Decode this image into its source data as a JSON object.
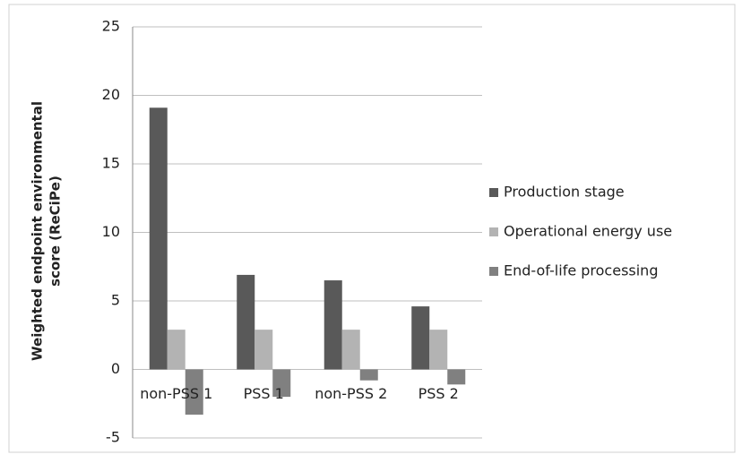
{
  "chart_data": {
    "type": "bar",
    "ylabel": [
      "Weighted endpoint environmental",
      "score (ReCiPe)"
    ],
    "categories": [
      "non-PSS 1",
      "PSS 1",
      "non-PSS 2",
      "PSS 2"
    ],
    "series": [
      {
        "name": "Production stage",
        "color": "#595959",
        "values": [
          19.1,
          6.9,
          6.5,
          4.6
        ]
      },
      {
        "name": "Operational energy use",
        "color": "#b3b3b3",
        "values": [
          2.9,
          2.9,
          2.9,
          2.9
        ]
      },
      {
        "name": "End-of-life processing",
        "color": "#808080",
        "values": [
          -3.3,
          -2.0,
          -0.8,
          -1.1
        ]
      }
    ],
    "ylim": [
      -5,
      25
    ],
    "yticks": [
      -5,
      0,
      5,
      10,
      15,
      20,
      25
    ],
    "grid": true,
    "legend": "right"
  }
}
